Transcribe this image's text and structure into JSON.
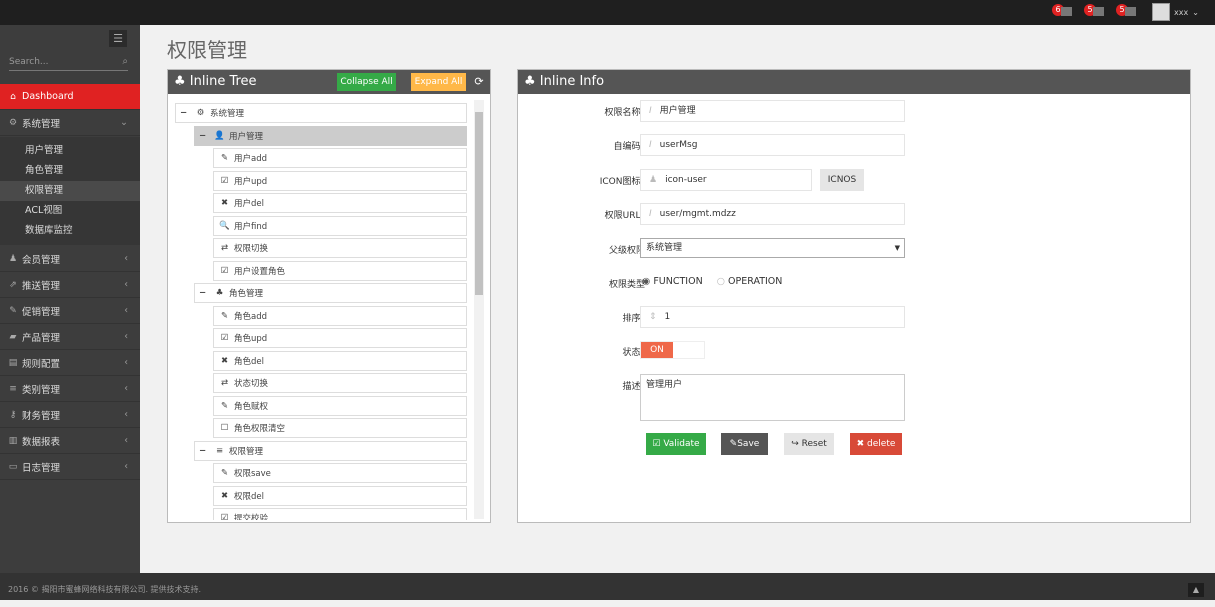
{
  "topbar": {
    "notifications": [
      {
        "count": "6",
        "icon": "bell-icon"
      },
      {
        "count": "5",
        "icon": "envelope-icon"
      },
      {
        "count": "5",
        "icon": "calendar-icon"
      }
    ],
    "username": "xxx"
  },
  "sidebar": {
    "search_placeholder": "Search...",
    "items": [
      {
        "label": "Dashboard",
        "icon": "home-icon",
        "active": true
      },
      {
        "label": "系统管理",
        "icon": "cogs-icon",
        "expanded": true,
        "children": [
          "用户管理",
          "角色管理",
          "权限管理",
          "ACL视图",
          "数据库监控"
        ],
        "selected_child": "权限管理"
      },
      {
        "label": "会员管理",
        "icon": "user-icon"
      },
      {
        "label": "推送管理",
        "icon": "share-icon"
      },
      {
        "label": "促销管理",
        "icon": "pencil-icon"
      },
      {
        "label": "产品管理",
        "icon": "box-icon"
      },
      {
        "label": "规则配置",
        "icon": "list-alt-icon"
      },
      {
        "label": "类别管理",
        "icon": "bars-icon"
      },
      {
        "label": "财务管理",
        "icon": "key-icon"
      },
      {
        "label": "数据报表",
        "icon": "chart-icon"
      },
      {
        "label": "日志管理",
        "icon": "credit-card-icon"
      }
    ]
  },
  "page": {
    "title": "权限管理"
  },
  "tree_panel": {
    "title": "Inline Tree",
    "collapse_label": "Collapse All",
    "expand_label": "Expand All",
    "nodes": [
      {
        "label": "系统管理",
        "level": 0,
        "icon": "⚙",
        "toggle": "−"
      },
      {
        "label": "用户管理",
        "level": 1,
        "icon": "👤",
        "toggle": "−",
        "highlight": true
      },
      {
        "label": "用户add",
        "level": 2,
        "icon": "✎"
      },
      {
        "label": "用户upd",
        "level": 2,
        "icon": "☑"
      },
      {
        "label": "用户del",
        "level": 2,
        "icon": "✖"
      },
      {
        "label": "用户find",
        "level": 2,
        "icon": "🔍"
      },
      {
        "label": "权限切换",
        "level": 2,
        "icon": "⇄"
      },
      {
        "label": "用户设置角色",
        "level": 2,
        "icon": "☑"
      },
      {
        "label": "角色管理",
        "level": 1,
        "icon": "♣",
        "toggle": "−"
      },
      {
        "label": "角色add",
        "level": 2,
        "icon": "✎"
      },
      {
        "label": "角色upd",
        "level": 2,
        "icon": "☑"
      },
      {
        "label": "角色del",
        "level": 2,
        "icon": "✖"
      },
      {
        "label": "状态切换",
        "level": 2,
        "icon": "⇄"
      },
      {
        "label": "角色赋权",
        "level": 2,
        "icon": "✎"
      },
      {
        "label": "角色权限清空",
        "level": 2,
        "icon": "☐"
      },
      {
        "label": "权限管理",
        "level": 1,
        "icon": "≡",
        "toggle": "−"
      },
      {
        "label": "权限save",
        "level": 2,
        "icon": "✎"
      },
      {
        "label": "权限del",
        "level": 2,
        "icon": "✖"
      },
      {
        "label": "提交校验",
        "level": 2,
        "icon": "☑"
      }
    ]
  },
  "info_panel": {
    "title": "Inline Info",
    "fields": {
      "name_label": "权限名称",
      "name_value": "用户管理",
      "code_label": "自编码",
      "code_value": "userMsg",
      "icon_label": "ICON图标",
      "icon_value": "icon-user",
      "icons_button": "ICNOS",
      "url_label": "权限URL",
      "url_value": "user/mgmt.mdzz",
      "parent_label": "父级权限",
      "parent_value": "系统管理",
      "type_label": "权限类型",
      "type_options": [
        "FUNCTION",
        "OPERATION"
      ],
      "type_selected": "FUNCTION",
      "order_label": "排序",
      "order_value": "1",
      "status_label": "状态",
      "status_value": "ON",
      "desc_label": "描述",
      "desc_value": "管理用户"
    },
    "buttons": {
      "validate": "Validate",
      "save": "Save",
      "reset": "Reset",
      "delete": "delete"
    }
  },
  "colors": {
    "accent_red": "#e02222",
    "green": "#35aa47",
    "orange": "#ffb848",
    "dark": "#555555"
  },
  "footer": {
    "text": "2016 © 揭阳市蜜蜂网络科技有限公司. 提供技术支持."
  }
}
